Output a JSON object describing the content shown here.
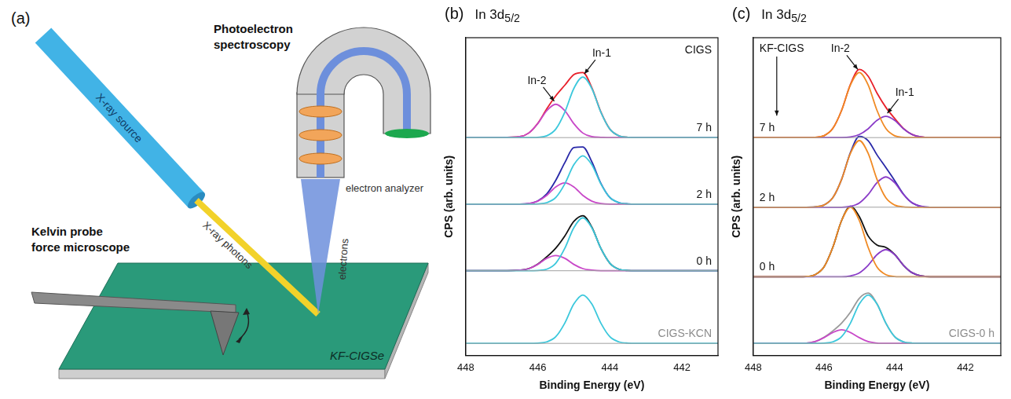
{
  "diagram": {
    "panel": "(a)",
    "x_ray_source": "X-ray source",
    "x_ray_photons": "X-ray photons",
    "spectroscopy": "Photoelectron spectroscopy",
    "analyzer": "electron analyzer",
    "electrons": "electrons",
    "kpfm": "Kelvin probe force microscope",
    "sample": "KF-CIGSe"
  },
  "chart_data": [
    {
      "type": "line",
      "panel": "(b)",
      "title": "In 3d",
      "title_subscript": "5/2",
      "sample": "CIGS",
      "x_label": "Binding Energy (eV)",
      "y_label": "CPS (arb. units)",
      "xlim": [
        448,
        441
      ],
      "xticks": [
        448,
        446,
        444,
        442
      ],
      "ylim": [
        0,
        10.5
      ],
      "tick_labels": "x",
      "grid": false,
      "x": [
        448,
        447,
        446.5,
        446.25,
        446,
        445.75,
        445.5,
        445.25,
        445,
        444.75,
        444.5,
        444.25,
        444,
        443.75,
        443.5,
        443,
        442,
        441
      ],
      "spectra": [
        {
          "label": "7 h",
          "color": "#111111",
          "baseline": 7.2,
          "series": [
            {
              "name": "In-1",
              "color": "#3cc8dc",
              "values": [
                7.2,
                7.2,
                7.2,
                7.2,
                7.21,
                7.26,
                7.48,
                8.04,
                8.82,
                9.2,
                8.82,
                8.04,
                7.48,
                7.26,
                7.21,
                7.2,
                7.2,
                7.2
              ]
            },
            {
              "name": "In-2",
              "color": "#c848c8",
              "values": [
                7.2,
                7.2,
                7.23,
                7.35,
                7.66,
                8.09,
                8.3,
                8.09,
                7.66,
                7.35,
                7.23,
                7.21,
                7.2,
                7.2,
                7.2,
                7.2,
                7.2,
                7.2
              ]
            },
            {
              "color": "#e8202a",
              "values": [
                7.2,
                7.2,
                7.23,
                7.35,
                7.67,
                8.15,
                8.58,
                8.93,
                9.28,
                9.35,
                8.85,
                8.05,
                7.48,
                7.26,
                7.21,
                7.2,
                7.2,
                7.2
              ]
            }
          ]
        },
        {
          "label": "2 h",
          "color": "#111111",
          "baseline": 5.0,
          "series": [
            {
              "name": "In-1",
              "color": "#3cc8dc",
              "values": [
                5,
                5,
                5,
                5,
                5.01,
                5.05,
                5.22,
                5.67,
                6.3,
                6.6,
                6.3,
                5.67,
                5.22,
                5.05,
                5.01,
                5,
                5,
                5
              ]
            },
            {
              "name": "In-2",
              "color": "#c848c8",
              "values": [
                5,
                5,
                5,
                5.02,
                5.1,
                5.29,
                5.57,
                5.7,
                5.57,
                5.29,
                5.1,
                5.02,
                5,
                5,
                5,
                5,
                5,
                5
              ]
            },
            {
              "color": "#2828a8",
              "values": [
                5,
                5,
                5,
                5.02,
                5.11,
                5.34,
                5.79,
                6.37,
                6.87,
                6.89,
                6.4,
                5.69,
                5.22,
                5.05,
                5.01,
                5,
                5,
                5
              ]
            }
          ]
        },
        {
          "label": "0 h",
          "color": "#111111",
          "baseline": 2.8,
          "series": [
            {
              "name": "In-1",
              "color": "#3cc8dc",
              "values": [
                2.8,
                2.8,
                2.8,
                2.8,
                2.81,
                2.85,
                3.05,
                3.54,
                4.22,
                4.55,
                4.22,
                3.54,
                3.05,
                2.85,
                2.81,
                2.8,
                2.8,
                2.8
              ]
            },
            {
              "name": "In-2",
              "color": "#c848c8",
              "values": [
                2.8,
                2.8,
                2.82,
                2.87,
                3.01,
                3.21,
                3.3,
                3.21,
                3.01,
                2.87,
                2.82,
                2.8,
                2.8,
                2.8,
                2.8,
                2.8,
                2.8,
                2.8
              ]
            },
            {
              "color": "#111111",
              "values": [
                2.8,
                2.8,
                2.82,
                2.87,
                3.02,
                3.26,
                3.55,
                3.95,
                4.43,
                4.62,
                4.24,
                3.54,
                3.05,
                2.85,
                2.81,
                2.8,
                2.8,
                2.8
              ]
            }
          ]
        },
        {
          "label": "CIGS-KCN",
          "color": "#8c8c8c",
          "baseline": 0.4,
          "series": [
            {
              "name": "In-1",
              "color": "#3cc8dc",
              "values": [
                0.4,
                0.4,
                0.4,
                0.4,
                0.41,
                0.45,
                0.62,
                1.07,
                1.7,
                2.0,
                1.7,
                1.07,
                0.62,
                0.45,
                0.41,
                0.4,
                0.4,
                0.4
              ]
            }
          ]
        }
      ],
      "annotations": [
        {
          "text": "In-1",
          "spectrum": "7 h"
        },
        {
          "text": "In-2",
          "spectrum": "7 h"
        }
      ]
    },
    {
      "type": "line",
      "panel": "(c)",
      "title": "In 3d",
      "title_subscript": "5/2",
      "sample": "KF-CIGS",
      "x_label": "Binding Energy (eV)",
      "y_label": "CPS (arb. units)",
      "xlim": [
        448,
        441
      ],
      "xticks": [
        448,
        446,
        444,
        442
      ],
      "ylim": [
        0,
        10.5
      ],
      "tick_labels": "x",
      "grid": false,
      "x": [
        448,
        447,
        446.5,
        446.25,
        446,
        445.75,
        445.5,
        445.25,
        445,
        444.75,
        444.5,
        444.25,
        444,
        443.75,
        443.5,
        443,
        442,
        441
      ],
      "spectra": [
        {
          "label": "7 h",
          "color": "#111111",
          "baseline": 7.2,
          "series": [
            {
              "name": "In-2",
              "color": "#f08a24",
              "values": [
                7.2,
                7.2,
                7.2,
                7.21,
                7.26,
                7.5,
                8.1,
                8.94,
                9.35,
                8.94,
                8.1,
                7.5,
                7.26,
                7.21,
                7.2,
                7.2,
                7.2,
                7.2
              ]
            },
            {
              "name": "In-1",
              "color": "#8a3cc8",
              "values": [
                7.2,
                7.2,
                7.2,
                7.2,
                7.2,
                7.2,
                7.2,
                7.22,
                7.3,
                7.49,
                7.77,
                7.9,
                7.77,
                7.49,
                7.3,
                7.2,
                7.2,
                7.2
              ]
            },
            {
              "color": "#e8202a",
              "values": [
                7.2,
                7.2,
                7.2,
                7.21,
                7.26,
                7.5,
                8.1,
                8.96,
                9.45,
                9.23,
                8.67,
                8.2,
                7.83,
                7.5,
                7.3,
                7.2,
                7.2,
                7.2
              ]
            }
          ]
        },
        {
          "label": "2 h",
          "color": "#111111",
          "baseline": 4.9,
          "series": [
            {
              "name": "In-2",
              "color": "#f08a24",
              "values": [
                4.9,
                4.9,
                4.9,
                4.91,
                4.97,
                5.21,
                5.82,
                6.68,
                7.1,
                6.68,
                5.82,
                5.21,
                4.97,
                4.91,
                4.9,
                4.9,
                4.9,
                4.9
              ]
            },
            {
              "name": "In-1",
              "color": "#8a3cc8",
              "values": [
                4.9,
                4.9,
                4.9,
                4.9,
                4.9,
                4.9,
                4.9,
                4.93,
                5.04,
                5.32,
                5.71,
                5.9,
                5.71,
                5.32,
                5.04,
                4.9,
                4.9,
                4.9
              ]
            },
            {
              "color": "#2828a8",
              "values": [
                4.9,
                4.9,
                4.9,
                4.91,
                4.97,
                5.21,
                5.82,
                6.71,
                7.24,
                7.1,
                6.63,
                6.21,
                5.78,
                5.33,
                5.04,
                4.9,
                4.9,
                4.9
              ]
            }
          ]
        },
        {
          "label": "0 h",
          "color": "#111111",
          "baseline": 2.6,
          "series": [
            {
              "name": "In-2",
              "color": "#f08a24",
              "values": [
                2.6,
                2.6,
                2.61,
                2.67,
                2.92,
                3.57,
                4.46,
                4.9,
                4.46,
                3.57,
                2.92,
                2.67,
                2.61,
                2.6,
                2.6,
                2.6,
                2.6,
                2.6
              ]
            },
            {
              "name": "In-1",
              "color": "#8a3cc8",
              "values": [
                2.6,
                2.6,
                2.6,
                2.6,
                2.6,
                2.6,
                2.6,
                2.63,
                2.73,
                2.98,
                3.33,
                3.5,
                3.33,
                2.98,
                2.73,
                2.6,
                2.6,
                2.6
              ]
            },
            {
              "color": "#111111",
              "values": [
                2.6,
                2.6,
                2.61,
                2.67,
                2.92,
                3.57,
                4.46,
                4.93,
                4.59,
                3.95,
                3.65,
                3.57,
                3.34,
                2.98,
                2.73,
                2.6,
                2.6,
                2.6
              ]
            }
          ]
        },
        {
          "label": "CIGS-0 h",
          "color": "#8c8c8c",
          "baseline": 0.4,
          "series": [
            {
              "name": "In-1",
              "color": "#3cc8dc",
              "values": [
                0.4,
                0.4,
                0.4,
                0.4,
                0.41,
                0.45,
                0.62,
                1.07,
                1.7,
                2.0,
                1.7,
                1.07,
                0.62,
                0.45,
                0.41,
                0.4,
                0.4,
                0.4
              ]
            },
            {
              "name": "In-2",
              "color": "#c848c8",
              "values": [
                0.4,
                0.4,
                0.41,
                0.46,
                0.59,
                0.76,
                0.85,
                0.76,
                0.59,
                0.46,
                0.41,
                0.4,
                0.4,
                0.4,
                0.4,
                0.4,
                0.4,
                0.4
              ]
            },
            {
              "color": "#9a9a9a",
              "values": [
                0.4,
                0.4,
                0.41,
                0.46,
                0.6,
                0.81,
                1.07,
                1.43,
                1.89,
                2.06,
                1.71,
                1.07,
                0.62,
                0.45,
                0.41,
                0.4,
                0.4,
                0.4
              ]
            }
          ]
        }
      ],
      "annotations": [
        {
          "text": "In-2",
          "spectrum": "7 h"
        },
        {
          "text": "In-1",
          "spectrum": "7 h"
        }
      ]
    }
  ]
}
